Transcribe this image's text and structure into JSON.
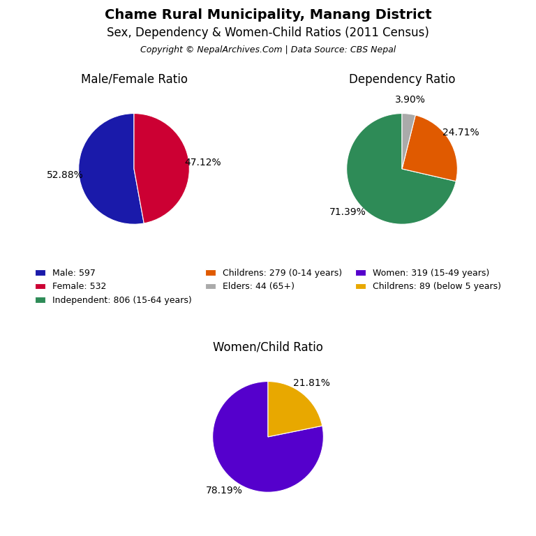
{
  "title": "Chame Rural Municipality, Manang District",
  "subtitle": "Sex, Dependency & Women-Child Ratios (2011 Census)",
  "annotations": [
    "Copyright © NepalArchives.Com | Data Source: CBS Nepal"
  ],
  "legend": "center",
  "chart_data": [
    {
      "type": "pie",
      "title": "Male/Female Ratio",
      "categories": [
        "Male: 597",
        "Female: 532"
      ],
      "values": [
        52.88,
        47.12
      ],
      "value_labels": [
        "52.88%",
        "47.12%"
      ],
      "colors": [
        "#1a1aaa",
        "#cc0033"
      ],
      "data_labels": true
    },
    {
      "type": "pie",
      "title": "Dependency Ratio",
      "categories": [
        "Independent: 806 (15-64 years)",
        "Childrens: 279 (0-14 years)",
        "Elders: 44 (65+)"
      ],
      "values": [
        71.39,
        24.71,
        3.9
      ],
      "value_labels": [
        "71.39%",
        "24.71%",
        "3.90%"
      ],
      "colors": [
        "#2e8b57",
        "#e05a00",
        "#aaaaaa"
      ],
      "data_labels": true
    },
    {
      "type": "pie",
      "title": "Women/Child Ratio",
      "categories": [
        "Women: 319 (15-49 years)",
        "Childrens: 89 (below 5 years)"
      ],
      "values": [
        78.19,
        21.81
      ],
      "value_labels": [
        "78.19%",
        "21.81%"
      ],
      "colors": [
        "#5500cc",
        "#e8a800"
      ],
      "data_labels": true
    }
  ]
}
